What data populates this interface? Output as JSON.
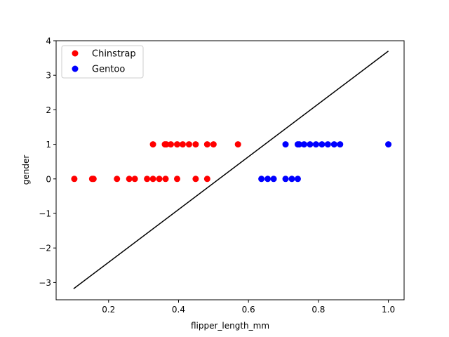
{
  "chart_data": {
    "type": "scatter",
    "xlabel": "flipper_length_mm",
    "ylabel": "gender",
    "xlim": [
      0.05,
      1.045
    ],
    "ylim": [
      -3.5,
      4.0
    ],
    "xticks": [
      0.2,
      0.4,
      0.6,
      0.8,
      1.0
    ],
    "xtick_labels": [
      "0.2",
      "0.4",
      "0.6",
      "0.8",
      "1.0"
    ],
    "yticks": [
      -3,
      -2,
      -1,
      0,
      1,
      2,
      3,
      4
    ],
    "ytick_labels": [
      "−3",
      "−2",
      "−1",
      "0",
      "1",
      "2",
      "3",
      "4"
    ],
    "grid": false,
    "legend_position": "top-left",
    "series": [
      {
        "name": "Chinstrap",
        "color": "#ff0000",
        "points": [
          [
            0.102,
            0
          ],
          [
            0.153,
            0
          ],
          [
            0.157,
            0
          ],
          [
            0.224,
            0
          ],
          [
            0.259,
            0
          ],
          [
            0.275,
            0
          ],
          [
            0.31,
            0
          ],
          [
            0.327,
            0
          ],
          [
            0.345,
            0
          ],
          [
            0.363,
            0
          ],
          [
            0.396,
            0
          ],
          [
            0.449,
            0
          ],
          [
            0.482,
            0
          ],
          [
            0.327,
            1
          ],
          [
            0.361,
            1
          ],
          [
            0.365,
            1
          ],
          [
            0.378,
            1
          ],
          [
            0.396,
            1
          ],
          [
            0.412,
            1
          ],
          [
            0.43,
            1
          ],
          [
            0.449,
            1
          ],
          [
            0.482,
            1
          ],
          [
            0.5,
            1
          ],
          [
            0.57,
            1
          ]
        ]
      },
      {
        "name": "Gentoo",
        "color": "#0000ff",
        "points": [
          [
            0.637,
            0
          ],
          [
            0.655,
            0
          ],
          [
            0.672,
            0
          ],
          [
            0.706,
            0
          ],
          [
            0.724,
            0
          ],
          [
            0.741,
            0
          ],
          [
            0.706,
            1
          ],
          [
            0.741,
            1
          ],
          [
            0.745,
            1
          ],
          [
            0.759,
            1
          ],
          [
            0.776,
            1
          ],
          [
            0.793,
            1
          ],
          [
            0.81,
            1
          ],
          [
            0.827,
            1
          ],
          [
            0.845,
            1
          ],
          [
            0.862,
            1
          ],
          [
            1.0,
            1
          ]
        ]
      }
    ],
    "line": {
      "color": "#000000",
      "points": [
        [
          0.1,
          -3.18
        ],
        [
          1.0,
          3.7
        ]
      ]
    }
  }
}
